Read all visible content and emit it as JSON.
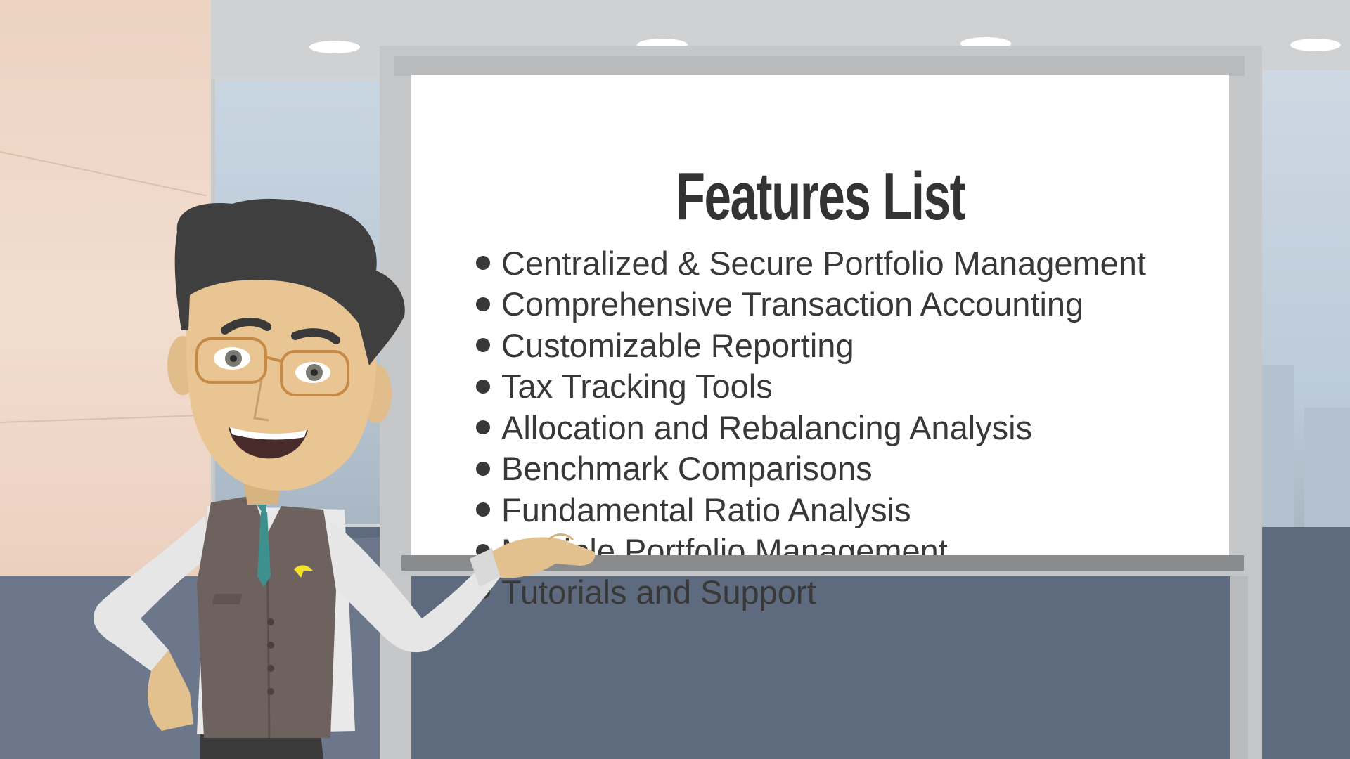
{
  "board": {
    "title": "Features List",
    "items": [
      "Centralized & Secure Portfolio Management",
      "Comprehensive Transaction Accounting",
      "Customizable Reporting",
      "Tax Tracking Tools",
      "Allocation and Rebalancing Analysis",
      "Benchmark Comparisons",
      "Fundamental Ratio Analysis",
      "Multiple Portfolio Management",
      "Tutorials and Support"
    ]
  },
  "colors": {
    "board_background": "#ffffff",
    "text": "#383838",
    "floor": "#5e6a7e",
    "wall": "#ecd3c2",
    "vest": "#6e625e",
    "tie": "#3f8f8f",
    "pin": "#f4e12a"
  },
  "icons": [
    "teacher-character",
    "ceiling-light",
    "lapel-pin-icon"
  ]
}
